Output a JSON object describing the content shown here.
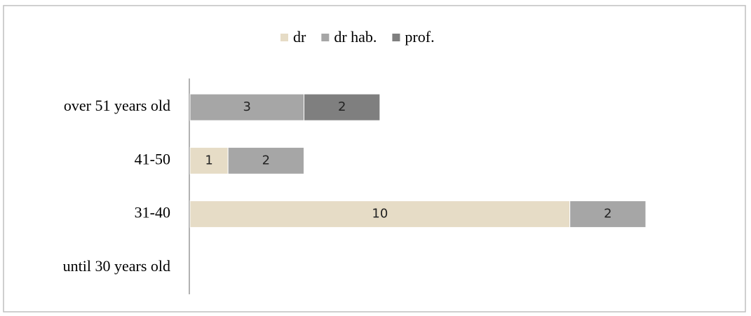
{
  "chart_data": {
    "type": "stacked-bar-horizontal",
    "categories": [
      "until 30 years old",
      "31-40",
      "41-50",
      "over 51 years old"
    ],
    "series": [
      {
        "name": "dr",
        "color": "#e6dcc6",
        "values": [
          null,
          10,
          1,
          null
        ]
      },
      {
        "name": "dr hab.",
        "color": "#a6a6a6",
        "values": [
          null,
          2,
          2,
          3
        ]
      },
      {
        "name": "prof.",
        "color": "#7f7f7f",
        "values": [
          null,
          null,
          null,
          2
        ]
      }
    ],
    "legend": "top",
    "data_labels": true
  }
}
